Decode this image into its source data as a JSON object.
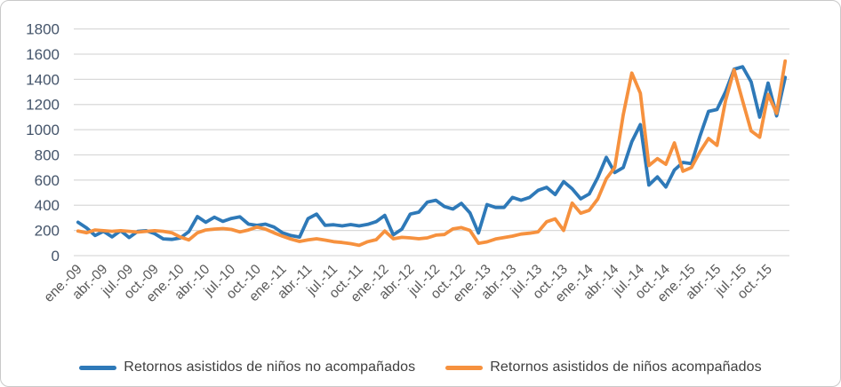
{
  "chart_data": {
    "type": "line",
    "title": "",
    "xlabel": "",
    "ylabel": "",
    "y_axis": {
      "min": 0,
      "max": 1800,
      "step": 200,
      "tick_labels": [
        "0",
        "200",
        "400",
        "600",
        "800",
        "1000",
        "1200",
        "1400",
        "1600",
        "1800"
      ]
    },
    "x_axis": {
      "tick_interval_months": 3,
      "tick_labels": [
        "ene.-09",
        "abr.-09",
        "jul.-09",
        "oct.-09",
        "ene.-10",
        "abr.-10",
        "jul.-10",
        "oct.-10",
        "ene.-11",
        "abr.-11",
        "jul.-11",
        "oct.-11",
        "ene.-12",
        "abr.-12",
        "jul.-12",
        "oct.-12",
        "ene.-13",
        "abr.-13",
        "jul.-13",
        "oct.-13",
        "ene.-14",
        "abr.-14",
        "jul.-14",
        "oct.-14",
        "ene.-15",
        "abr.-15",
        "jul.-15",
        "oct.-15"
      ]
    },
    "grid": true,
    "legend_position": "bottom-center",
    "colors": {
      "grid": "#d9d9d9",
      "y_tick_text": "#44546a",
      "x_tick_text": "#595959",
      "series_blue": "#2e79b8",
      "series_orange": "#f6913e"
    },
    "series": [
      {
        "name": "Retornos asistidos de niños no acompañados",
        "color": "#2e79b8",
        "values": [
          265,
          220,
          160,
          193,
          149,
          198,
          144,
          193,
          198,
          175,
          133,
          129,
          140,
          190,
          310,
          265,
          305,
          272,
          295,
          308,
          250,
          240,
          250,
          227,
          181,
          159,
          147,
          294,
          330,
          240,
          245,
          236,
          247,
          236,
          248,
          270,
          320,
          165,
          210,
          330,
          345,
          425,
          440,
          390,
          370,
          415,
          340,
          180,
          405,
          383,
          383,
          462,
          440,
          462,
          519,
          542,
          485,
          588,
          531,
          451,
          490,
          620,
          780,
          660,
          700,
          905,
          1040,
          560,
          625,
          545,
          680,
          740,
          730,
          950,
          1145,
          1160,
          1300,
          1480,
          1500,
          1380,
          1100,
          1370,
          1110,
          1415
        ]
      },
      {
        "name": "Retornos asistidos de niños acompañados",
        "color": "#f6913e",
        "values": [
          195,
          182,
          204,
          198,
          193,
          198,
          193,
          187,
          193,
          198,
          193,
          182,
          147,
          125,
          181,
          204,
          211,
          215,
          208,
          188,
          204,
          227,
          211,
          181,
          154,
          131,
          113,
          125,
          134,
          123,
          111,
          104,
          95,
          82,
          111,
          127,
          195,
          134,
          145,
          141,
          134,
          141,
          163,
          168,
          212,
          223,
          200,
          98,
          109,
          132,
          144,
          155,
          171,
          178,
          189,
          269,
          292,
          200,
          417,
          337,
          360,
          450,
          610,
          700,
          1120,
          1450,
          1290,
          715,
          770,
          725,
          895,
          670,
          700,
          825,
          930,
          875,
          1230,
          1475,
          1230,
          990,
          940,
          1280,
          1130,
          1545
        ]
      }
    ]
  },
  "legend": {
    "items": [
      {
        "label": "Retornos asistidos de niños no acompañados",
        "color": "#2e79b8"
      },
      {
        "label": "Retornos asistidos de niños acompañados",
        "color": "#f6913e"
      }
    ]
  }
}
